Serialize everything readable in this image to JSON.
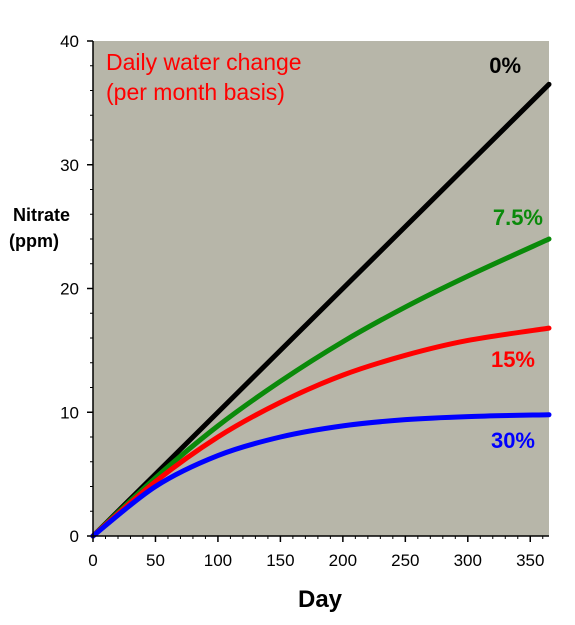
{
  "chart_data": {
    "type": "line",
    "xlabel": "Day",
    "ylabel_lines": [
      "Nitrate",
      "(ppm)"
    ],
    "annotation_lines": [
      "Daily water change",
      "(per month basis)"
    ],
    "annotation_color": "#ff0000",
    "xlim": [
      0,
      365
    ],
    "ylim": [
      0,
      40
    ],
    "xticks": [
      0,
      50,
      100,
      150,
      200,
      250,
      300,
      350
    ],
    "yticks": [
      0,
      10,
      20,
      30,
      40
    ],
    "grid": false,
    "plot_background": "#b7b6a9",
    "series": [
      {
        "name": "0%",
        "color": "#000000",
        "x": [
          0,
          50,
          100,
          150,
          200,
          250,
          300,
          365
        ],
        "y": [
          0,
          5.0,
          10.0,
          15.0,
          20.0,
          25.0,
          30.0,
          36.5
        ]
      },
      {
        "name": "7.5%",
        "color": "#0a8a0a",
        "x": [
          0,
          50,
          100,
          150,
          200,
          250,
          300,
          365
        ],
        "y": [
          0,
          4.7,
          8.9,
          12.5,
          15.7,
          18.5,
          21.0,
          24.0
        ]
      },
      {
        "name": "15%",
        "color": "#ff0000",
        "x": [
          0,
          50,
          100,
          150,
          200,
          250,
          300,
          365
        ],
        "y": [
          0,
          4.4,
          8.0,
          10.8,
          13.0,
          14.6,
          15.8,
          16.8
        ]
      },
      {
        "name": "30%",
        "color": "#0000ff",
        "x": [
          0,
          50,
          100,
          150,
          200,
          250,
          300,
          365
        ],
        "y": [
          0,
          4.0,
          6.5,
          8.0,
          8.9,
          9.4,
          9.65,
          9.8
        ]
      }
    ]
  }
}
